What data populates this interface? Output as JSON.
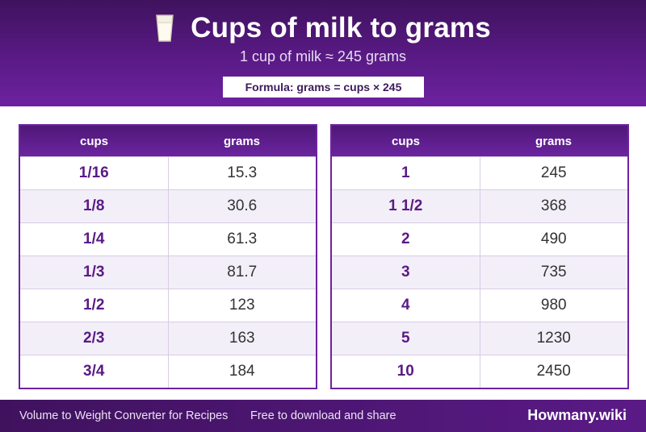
{
  "header": {
    "icon": "milk-glass-icon",
    "title": "Cups of milk to grams",
    "subtitle": "1 cup of milk ≈ 245 grams",
    "formula": "Formula: grams = cups × 245"
  },
  "tables": [
    {
      "columns": [
        "cups",
        "grams"
      ],
      "rows": [
        {
          "cups": "1/16",
          "grams": "15.3"
        },
        {
          "cups": "1/8",
          "grams": "30.6"
        },
        {
          "cups": "1/4",
          "grams": "61.3"
        },
        {
          "cups": "1/3",
          "grams": "81.7"
        },
        {
          "cups": "1/2",
          "grams": "123"
        },
        {
          "cups": "2/3",
          "grams": "163"
        },
        {
          "cups": "3/4",
          "grams": "184"
        }
      ]
    },
    {
      "columns": [
        "cups",
        "grams"
      ],
      "rows": [
        {
          "cups": "1",
          "grams": "245"
        },
        {
          "cups": "1 1/2",
          "grams": "368"
        },
        {
          "cups": "2",
          "grams": "490"
        },
        {
          "cups": "3",
          "grams": "735"
        },
        {
          "cups": "4",
          "grams": "980"
        },
        {
          "cups": "5",
          "grams": "1230"
        },
        {
          "cups": "10",
          "grams": "2450"
        }
      ]
    }
  ],
  "footer": {
    "left": "Volume to Weight Converter for Recipes",
    "middle": "Free to download and share",
    "brand": "Howmany.wiki"
  },
  "colors": {
    "primary": "#5a1a86",
    "dark": "#3f125e",
    "alt_row": "#f3eff8"
  }
}
